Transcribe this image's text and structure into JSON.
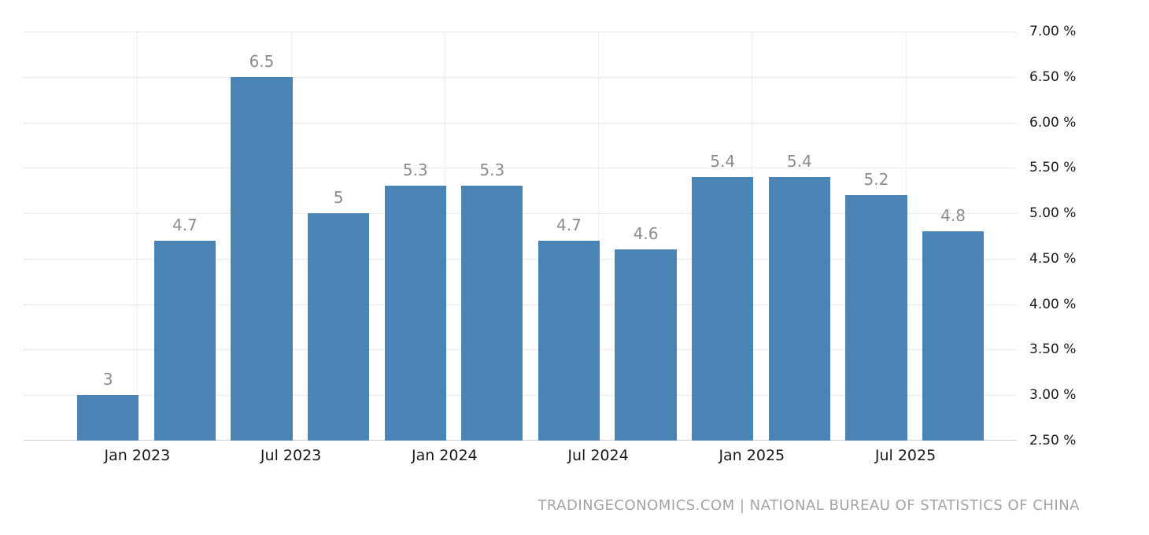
{
  "chart_data": {
    "type": "bar",
    "title": "",
    "xlabel": "",
    "ylabel": "",
    "values": [
      3,
      4.7,
      6.5,
      5,
      5.3,
      5.3,
      4.7,
      4.6,
      5.4,
      5.4,
      5.2,
      4.8
    ],
    "bar_labels": [
      "3",
      "4.7",
      "6.5",
      "5",
      "5.3",
      "5.3",
      "4.7",
      "4.6",
      "5.4",
      "5.4",
      "5.2",
      "4.8"
    ],
    "x_tick_labels": [
      "Jan 2023",
      "Jul 2023",
      "Jan 2024",
      "Jul 2024",
      "Jan 2025",
      "Jul 2025"
    ],
    "y_tick_labels": [
      "7.00 %",
      "6.50 %",
      "6.00 %",
      "5.50 %",
      "5.00 %",
      "4.50 %",
      "4.00 %",
      "3.50 %",
      "3.00 %",
      "2.50 %"
    ],
    "ylim": [
      2.5,
      7.0
    ],
    "grid": true,
    "legend_position": "none",
    "bar_color": "#4a84b5",
    "value_label_color": "#8c8c8c",
    "attribution": "TRADINGECONOMICS.COM | NATIONAL BUREAU OF STATISTICS OF CHINA"
  }
}
